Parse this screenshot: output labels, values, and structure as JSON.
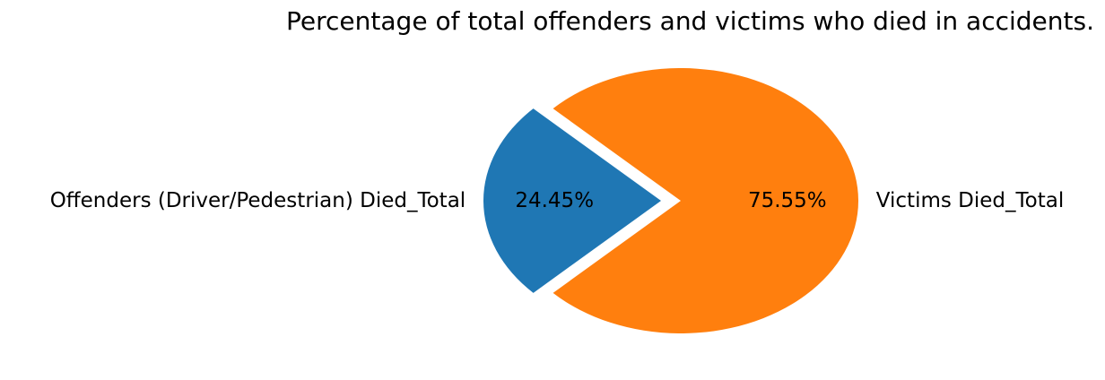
{
  "chart_data": {
    "type": "pie",
    "title": "Percentage of total offenders and victims who died in accidents.",
    "slices": [
      {
        "label": "Offenders (Driver/Pedestrian) Died_Total",
        "value": 24.45,
        "pct_label": "24.45%",
        "color": "#1f77b4",
        "exploded": true
      },
      {
        "label": "Victims Died_Total",
        "value": 75.55,
        "pct_label": "75.55%",
        "color": "#ff7f0e",
        "exploded": false
      }
    ],
    "legend": "none"
  }
}
